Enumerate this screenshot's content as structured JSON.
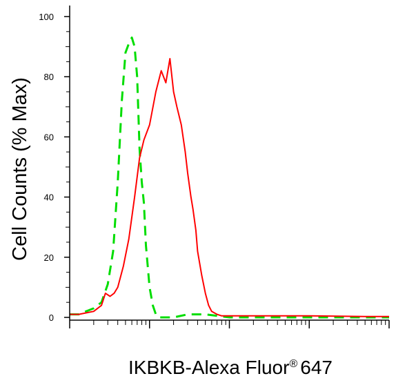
{
  "chart_data": {
    "type": "line",
    "title": "",
    "xlabel": "IKBKB-Alexa Fluor",
    "xlabel_superscript": "®",
    "xlabel_suffix": "647",
    "ylabel": "Cell Counts (% Max)",
    "x_scale": "log",
    "xlim": [
      0.01,
      100
    ],
    "ylim": [
      0,
      105
    ],
    "y_ticks": [
      0,
      20,
      40,
      60,
      80,
      100
    ],
    "y_tick_labels": [
      "0",
      "20",
      "40",
      "60",
      "80",
      "100"
    ],
    "x_tick_labels": [],
    "grid": false,
    "legend": "none",
    "series": [
      {
        "color": "#00dd00",
        "style": "dashed",
        "x": [
          0.01,
          0.013,
          0.016,
          0.02,
          0.025,
          0.03,
          0.035,
          0.04,
          0.045,
          0.05,
          0.055,
          0.06,
          0.065,
          0.07,
          0.075,
          0.08,
          0.085,
          0.09,
          0.1,
          0.11,
          0.12,
          0.13,
          0.15,
          0.2,
          0.3,
          0.5,
          1.0,
          2.0,
          10,
          100
        ],
        "y": [
          1,
          1,
          2,
          3,
          5,
          11,
          22,
          45,
          72,
          88,
          91,
          93,
          90,
          80,
          56,
          45,
          38,
          24,
          10,
          4,
          1,
          0,
          0,
          0,
          1,
          1,
          0,
          0,
          0,
          0
        ]
      },
      {
        "color": "#ff0000",
        "style": "solid",
        "x": [
          0.01,
          0.013,
          0.016,
          0.02,
          0.025,
          0.028,
          0.032,
          0.036,
          0.04,
          0.047,
          0.055,
          0.065,
          0.075,
          0.085,
          0.1,
          0.12,
          0.14,
          0.16,
          0.18,
          0.2,
          0.22,
          0.25,
          0.28,
          0.3,
          0.33,
          0.35,
          0.38,
          0.4,
          0.45,
          0.5,
          0.55,
          0.6,
          0.7,
          0.8,
          0.9,
          1.0,
          1.2,
          1.5,
          2.0,
          3.0,
          5.0,
          10,
          50,
          100
        ],
        "y": [
          1,
          1,
          1.5,
          2,
          4,
          8,
          7,
          8,
          10,
          17,
          26,
          40,
          53,
          59,
          64,
          75,
          82,
          78,
          86,
          75,
          70,
          64,
          55,
          48,
          40,
          36,
          29,
          22,
          14,
          8,
          4,
          2,
          1,
          0.5,
          0.5,
          0.5,
          0.5,
          0.5,
          0.5,
          0.5,
          0.5,
          0.5,
          0.3,
          0.3
        ]
      }
    ]
  }
}
